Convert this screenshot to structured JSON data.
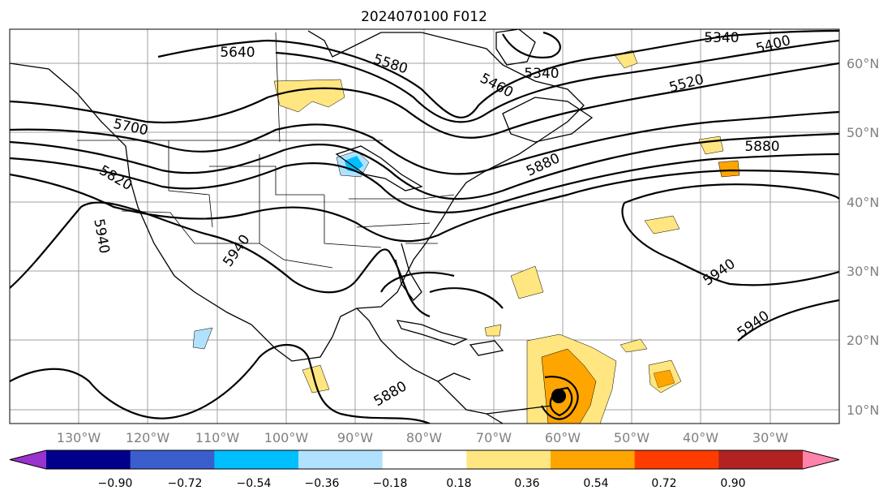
{
  "map": {
    "title": "2024070100 F012",
    "lon_labels": [
      "130°W",
      "120°W",
      "110°W",
      "100°W",
      "90°W",
      "80°W",
      "70°W",
      "60°W",
      "50°W",
      "40°W",
      "30°W"
    ],
    "lat_labels": [
      "60°N",
      "50°N",
      "40°N",
      "30°N",
      "20°N",
      "10°N"
    ],
    "contour_labels": [
      "5640",
      "5580",
      "5460",
      "5340",
      "5400",
      "5520",
      "5340",
      "5700",
      "5820",
      "5880",
      "5940",
      "5940",
      "5940",
      "5940",
      "5880",
      "5880"
    ]
  },
  "colorbar": {
    "ticks": [
      "−0.90",
      "−0.72",
      "−0.54",
      "−0.36",
      "−0.18",
      "0.18",
      "0.36",
      "0.54",
      "0.72",
      "0.90"
    ],
    "colors": [
      "#9a32cd",
      "#00008b",
      "#3a5fcd",
      "#00bfff",
      "#b0e2ff",
      "#ffffff",
      "#ffe680",
      "#ffa500",
      "#ff3c00",
      "#b22222",
      "#ff82ab"
    ]
  }
}
